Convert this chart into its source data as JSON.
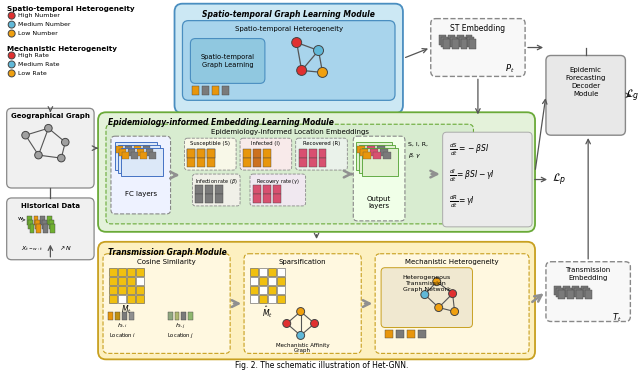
{
  "title": "Fig. 2. The schematic illustration of Het-GNN.",
  "colors": {
    "st_module_bg": "#cce8f4",
    "st_module_border": "#4a8ec0",
    "st_inner_bg": "#a8d4ec",
    "epi_module_bg": "#e4f2da",
    "epi_module_border": "#6aaa38",
    "epi_inner_bg": "#d0e8c8",
    "trans_module_bg": "#fdf0c0",
    "trans_module_border": "#c8a020",
    "geo_bg": "#f0f0f0",
    "geo_border": "#888888",
    "dashed_bg": "#f8f8f8",
    "dashed_border": "#888888",
    "eq_bg": "#e8e8e8",
    "bar_orange": "#e8960c",
    "bar_gray": "#7a7a7a",
    "bar_pink": "#d85070",
    "bar_green": "#70b030",
    "bar_teal": "#508080",
    "node_red": "#e03030",
    "node_blue": "#60b8d8",
    "node_orange": "#f0a010",
    "node_gray": "#909090",
    "arrow_color": "#555555",
    "thick_arrow": "#909090",
    "yellow_cell": "#f0c010",
    "white_cell": "#ffffff",
    "htgn_bg": "#f0e8d0"
  },
  "legend_st_title": "Spatio-temporal Heterogeneity",
  "legend_st": [
    {
      "label": "High Number",
      "color": "#e03030"
    },
    {
      "label": "Medium Number",
      "color": "#60b8d8"
    },
    {
      "label": "Low Number",
      "color": "#f0a010"
    }
  ],
  "legend_mech_title": "Mechanistic Heterogeneity",
  "legend_mech": [
    {
      "label": "High Rate",
      "color": "#e03030"
    },
    {
      "label": "Medium Rate",
      "color": "#60b8d8"
    },
    {
      "label": "Low Rate",
      "color": "#f0a010"
    }
  ]
}
